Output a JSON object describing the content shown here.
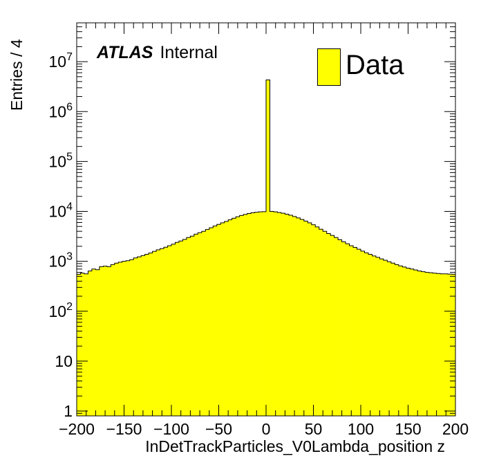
{
  "chart_data": {
    "type": "bar",
    "subtype": "histogram",
    "title": "",
    "xlabel": "InDetTrackParticles_V0Lambda_position z",
    "ylabel": "Entries / 4",
    "xlim": [
      -200,
      200
    ],
    "ylim": [
      0.8,
      60000000
    ],
    "yscale": "log",
    "bin_width": 4,
    "grid": false,
    "legend_position": "top-right",
    "fill_color": "#ffff00",
    "x_tick_labels": [
      "−200",
      "−150",
      "−100",
      "−50",
      "0",
      "50",
      "100",
      "150",
      "200"
    ],
    "y_tick_labels": [
      {
        "value": 1,
        "base": "1",
        "exp": ""
      },
      {
        "value": 10,
        "base": "10",
        "exp": ""
      },
      {
        "value": 100,
        "base": "10",
        "exp": "2"
      },
      {
        "value": 1000,
        "base": "10",
        "exp": "3"
      },
      {
        "value": 10000,
        "base": "10",
        "exp": "4"
      },
      {
        "value": 100000,
        "base": "10",
        "exp": "5"
      },
      {
        "value": 1000000,
        "base": "10",
        "exp": "6"
      },
      {
        "value": 10000000,
        "base": "10",
        "exp": "7"
      }
    ],
    "series": [
      {
        "name": "Data",
        "bin_lows": [
          -200,
          -196,
          -192,
          -188,
          -184,
          -180,
          -176,
          -172,
          -168,
          -164,
          -160,
          -156,
          -152,
          -148,
          -144,
          -140,
          -136,
          -132,
          -128,
          -124,
          -120,
          -116,
          -112,
          -108,
          -104,
          -100,
          -96,
          -92,
          -88,
          -84,
          -80,
          -76,
          -72,
          -68,
          -64,
          -60,
          -56,
          -52,
          -48,
          -44,
          -40,
          -36,
          -32,
          -28,
          -24,
          -20,
          -16,
          -12,
          -8,
          -4,
          0,
          4,
          8,
          12,
          16,
          20,
          24,
          28,
          32,
          36,
          40,
          44,
          48,
          52,
          56,
          60,
          64,
          68,
          72,
          76,
          80,
          84,
          88,
          92,
          96,
          100,
          104,
          108,
          112,
          116,
          120,
          124,
          128,
          132,
          136,
          140,
          144,
          148,
          152,
          156,
          160,
          164,
          168,
          172,
          176,
          180,
          184,
          188,
          192,
          196
        ],
        "values": [
          550,
          580,
          560,
          640,
          700,
          680,
          780,
          800,
          780,
          860,
          920,
          960,
          1000,
          1030,
          1080,
          1170,
          1230,
          1300,
          1380,
          1470,
          1580,
          1700,
          1800,
          1920,
          2050,
          2200,
          2400,
          2550,
          2750,
          3000,
          3200,
          3500,
          3750,
          4000,
          4350,
          4700,
          5100,
          5500,
          5900,
          6300,
          6800,
          7300,
          7800,
          8300,
          8700,
          9100,
          9400,
          9600,
          9800,
          9900,
          4300000,
          10000,
          9800,
          9500,
          9200,
          8800,
          8400,
          7900,
          7400,
          6900,
          6400,
          5900,
          5400,
          4900,
          4400,
          4000,
          3600,
          3300,
          3000,
          2700,
          2450,
          2250,
          2050,
          1900,
          1750,
          1600,
          1480,
          1380,
          1280,
          1200,
          1120,
          1050,
          980,
          920,
          860,
          810,
          770,
          730,
          700,
          670,
          640,
          620,
          600,
          590,
          580,
          570,
          560,
          560,
          555,
          550
        ]
      }
    ]
  },
  "annotations": {
    "atlas_bold": "ATLAS",
    "atlas_status": "Internal"
  }
}
